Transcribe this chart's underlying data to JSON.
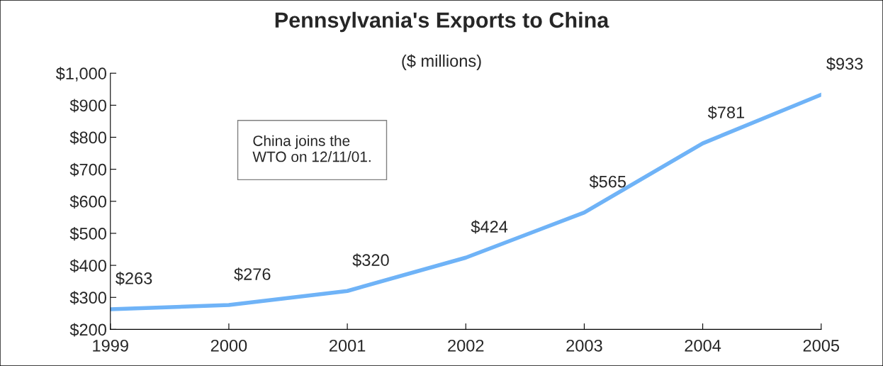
{
  "chart_data": {
    "type": "line",
    "title": "Pennsylvania's Exports to China",
    "subtitle": "($ millions)",
    "x": [
      1999,
      2000,
      2001,
      2002,
      2003,
      2004,
      2005
    ],
    "series": [
      {
        "color": "#6fb3f7",
        "values": [
          263,
          276,
          320,
          424,
          565,
          781,
          933
        ],
        "value_labels": [
          "$263",
          "$276",
          "$320",
          "$424",
          "$565",
          "$781",
          "$933"
        ]
      }
    ],
    "xlim": [
      1999,
      2005
    ],
    "xticks": [
      1999,
      2000,
      2001,
      2002,
      2003,
      2004,
      2005
    ],
    "ylim": [
      200,
      1000
    ],
    "yticks": [
      {
        "value": 200,
        "label": "$200"
      },
      {
        "value": 300,
        "label": "$300"
      },
      {
        "value": 400,
        "label": "$400"
      },
      {
        "value": 500,
        "label": "$500"
      },
      {
        "value": 600,
        "label": "$600"
      },
      {
        "value": 700,
        "label": "$700"
      },
      {
        "value": 800,
        "label": "$800"
      },
      {
        "value": 900,
        "label": "$900"
      },
      {
        "value": 1000,
        "label": "$1,000"
      }
    ],
    "annotations": [
      "China joins the\nWTO on 12/11/01."
    ],
    "grid": false,
    "legend": false,
    "marker": "none",
    "line_style": "solid"
  }
}
